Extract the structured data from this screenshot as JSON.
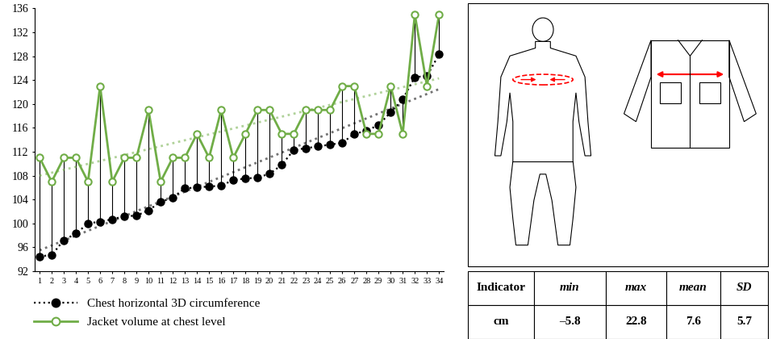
{
  "chart_data": {
    "type": "line",
    "categories": [
      "1",
      "2",
      "3",
      "4",
      "5",
      "6",
      "7",
      "8",
      "9",
      "10",
      "11",
      "12",
      "13",
      "14",
      "15",
      "16",
      "17",
      "18",
      "19",
      "20",
      "21",
      "22",
      "23",
      "24",
      "25",
      "26",
      "27",
      "28",
      "29",
      "30",
      "31",
      "32",
      "33",
      "34"
    ],
    "ylim": [
      92,
      136
    ],
    "yticks": [
      92,
      96,
      100,
      104,
      108,
      112,
      116,
      120,
      124,
      128,
      132,
      136
    ],
    "legend": "lower left",
    "series": [
      {
        "name": "Chest horizontal 3D circumference",
        "color": "#000000",
        "marker": "circle",
        "line_style": "dotted",
        "values": [
          94.5,
          94.7,
          97.2,
          98.3,
          100.0,
          100.3,
          100.7,
          101.2,
          101.3,
          102.2,
          103.6,
          104.3,
          105.9,
          106.0,
          106.2,
          106.3,
          107.3,
          107.5,
          107.7,
          108.3,
          109.8,
          112.3,
          112.6,
          112.9,
          113.2,
          113.5,
          115.0,
          115.5,
          116.5,
          118.6,
          120.8,
          124.5,
          124.7,
          128.3
        ],
        "trend": [
          95.5,
          122.5
        ]
      },
      {
        "name": "Jacket volume at chest level",
        "color": "#70ad47",
        "marker": "open circle",
        "line_style": "solid",
        "values": [
          111,
          107,
          111,
          111,
          107,
          123,
          107,
          111,
          111,
          119,
          107,
          111,
          111,
          115,
          111,
          119,
          111,
          115,
          119,
          119,
          115,
          115,
          119,
          119,
          119,
          123,
          123,
          115,
          115,
          123,
          115,
          135,
          123,
          135
        ],
        "trend": [
          108,
          124.3
        ]
      }
    ]
  },
  "table": {
    "header": [
      "Indicator",
      "min",
      "max",
      "mean",
      "SD"
    ],
    "rows": [
      [
        "cm",
        "–5.8",
        "22.8",
        "7.6",
        "5.7"
      ]
    ]
  }
}
